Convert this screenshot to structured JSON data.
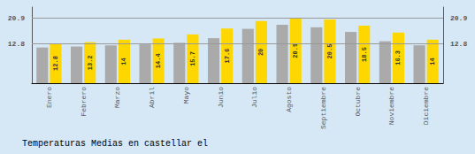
{
  "chart_data": {
    "type": "bar",
    "title": "Temperaturas Medias en castellar el",
    "categories": [
      "Enero",
      "Febrero",
      "Marzo",
      "Abril",
      "Mayo",
      "Junio",
      "Julio",
      "Agosto",
      "Septiembre",
      "Octubre",
      "Noviembre",
      "Diciembre"
    ],
    "series": [
      {
        "color": "#AAAAAA",
        "values": [
          11.5,
          11.8,
          12.2,
          12.5,
          13.0,
          14.5,
          17.5,
          18.8,
          18.0,
          16.5,
          13.5,
          12.2
        ]
      },
      {
        "color": "#FFD700",
        "values": [
          12.8,
          13.2,
          14.0,
          14.4,
          15.7,
          17.6,
          20.0,
          20.9,
          20.5,
          18.5,
          16.3,
          14.0
        ],
        "data_labels": true
      }
    ],
    "ylim": [
      0,
      24.5
    ],
    "yticks": [
      12.8,
      20.9
    ],
    "y2lim": [
      0,
      24.5
    ],
    "y2ticks": [
      12.8,
      20.9
    ],
    "grid": true
  }
}
